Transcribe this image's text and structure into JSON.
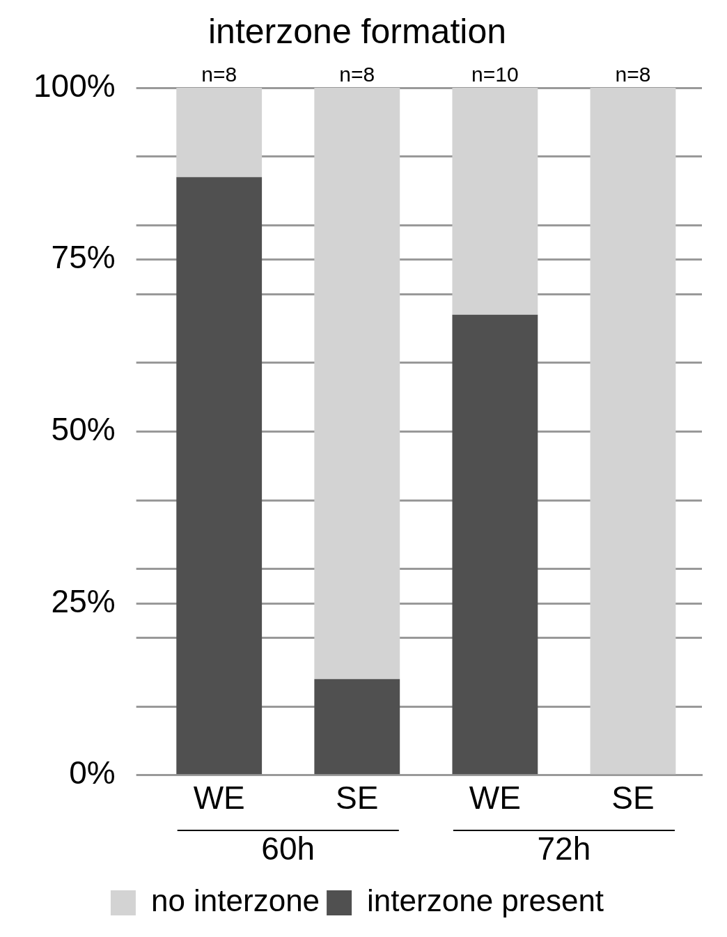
{
  "chart_data": {
    "type": "bar",
    "title": "interzone formation",
    "stacked": true,
    "categories": [
      "WE",
      "SE",
      "WE",
      "SE"
    ],
    "series": [
      {
        "name": "interzone present",
        "color": "#505050",
        "values": [
          87,
          14,
          67,
          0
        ]
      },
      {
        "name": "no interzone",
        "color": "#d3d3d3",
        "values": [
          13,
          86,
          33,
          100
        ]
      }
    ],
    "ylim": [
      0,
      100
    ],
    "yticks": [
      {
        "value": 0,
        "label": "0%"
      },
      {
        "value": 10,
        "label": null
      },
      {
        "value": 20,
        "label": null
      },
      {
        "value": 25,
        "label": "25%"
      },
      {
        "value": 30,
        "label": null
      },
      {
        "value": 40,
        "label": null
      },
      {
        "value": 50,
        "label": "50%"
      },
      {
        "value": 60,
        "label": null
      },
      {
        "value": 70,
        "label": null
      },
      {
        "value": 75,
        "label": "75%"
      },
      {
        "value": 80,
        "label": null
      },
      {
        "value": 90,
        "label": null
      },
      {
        "value": 100,
        "label": "100%"
      }
    ],
    "grid": "y",
    "legend": "bottom",
    "annotations": [
      "n=8",
      "n=8",
      "n=10",
      "n=8",
      "60h",
      "72h"
    ]
  }
}
